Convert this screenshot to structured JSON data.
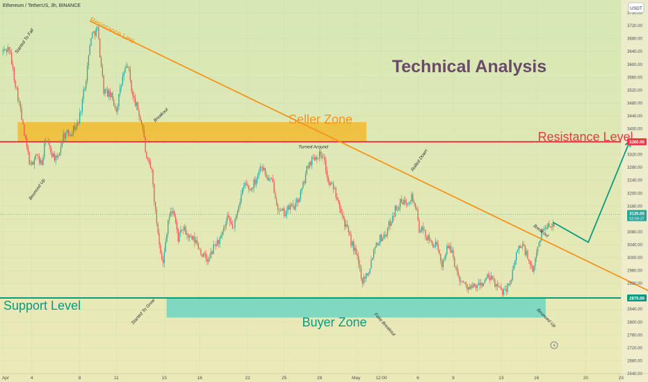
{
  "header": {
    "symbol": "Ethereum / TetherUS, 3h, BINANCE",
    "currency": "USDT"
  },
  "colors": {
    "bg_top": "#d6e8b4",
    "bg_bottom": "#ece9b8",
    "candle_up": "#26a69a",
    "candle_down": "#ef5350",
    "resistance": "#f23645",
    "support": "#089981",
    "trendline": "#f7931a",
    "seller_zone": "#f5b51e",
    "buyer_zone": "#5fd3c4",
    "title": "#6a4a68"
  },
  "chart_data": {
    "type": "candlestick",
    "title": "Technical Analysis",
    "ylim": [
      2640,
      3800
    ],
    "y_ticks": [
      "3760.00",
      "3720.00",
      "3680.00",
      "3640.00",
      "3600.00",
      "3560.00",
      "3520.00",
      "3480.00",
      "3440.00",
      "3400.00",
      "3360.00",
      "3320.00",
      "3280.00",
      "3240.00",
      "3200.00",
      "3160.00",
      "3120.00",
      "3080.00",
      "3040.00",
      "3000.00",
      "2960.00",
      "2920.00",
      "2880.00",
      "2840.00",
      "2800.00",
      "2760.00",
      "2720.00",
      "2680.00",
      "2640.00"
    ],
    "x_ticks": [
      {
        "label": "Apr",
        "idx": 0
      },
      {
        "label": "4",
        "idx": 23
      },
      {
        "label": "8",
        "idx": 61
      },
      {
        "label": "11",
        "idx": 90
      },
      {
        "label": "15",
        "idx": 128
      },
      {
        "label": "18",
        "idx": 156
      },
      {
        "label": "22",
        "idx": 194
      },
      {
        "label": "25",
        "idx": 223
      },
      {
        "label": "28",
        "idx": 251
      },
      {
        "label": "May",
        "idx": 280
      },
      {
        "label": "12:00",
        "idx": 300
      },
      {
        "label": "6",
        "idx": 329
      },
      {
        "label": "9",
        "idx": 357
      },
      {
        "label": "13",
        "idx": 395
      },
      {
        "label": "16",
        "idx": 423
      },
      {
        "label": "20",
        "idx": 462
      },
      {
        "label": "23",
        "idx": 490
      }
    ],
    "candle_count": 450,
    "price_path": [
      [
        0,
        3640
      ],
      [
        5,
        3650
      ],
      [
        9,
        3560
      ],
      [
        13,
        3480
      ],
      [
        17,
        3380
      ],
      [
        22,
        3280
      ],
      [
        26,
        3320
      ],
      [
        31,
        3290
      ],
      [
        34,
        3370
      ],
      [
        38,
        3330
      ],
      [
        43,
        3300
      ],
      [
        48,
        3380
      ],
      [
        54,
        3390
      ],
      [
        60,
        3420
      ],
      [
        66,
        3560
      ],
      [
        70,
        3690
      ],
      [
        75,
        3710
      ],
      [
        80,
        3520
      ],
      [
        86,
        3500
      ],
      [
        90,
        3460
      ],
      [
        95,
        3560
      ],
      [
        99,
        3600
      ],
      [
        103,
        3500
      ],
      [
        107,
        3460
      ],
      [
        111,
        3400
      ],
      [
        114,
        3300
      ],
      [
        118,
        3270
      ],
      [
        121,
        3140
      ],
      [
        124,
        3050
      ],
      [
        127,
        2980
      ],
      [
        131,
        3120
      ],
      [
        135,
        3150
      ],
      [
        139,
        3060
      ],
      [
        143,
        3090
      ],
      [
        148,
        3060
      ],
      [
        153,
        3050
      ],
      [
        158,
        3010
      ],
      [
        163,
        2990
      ],
      [
        168,
        3040
      ],
      [
        173,
        3060
      ],
      [
        178,
        3120
      ],
      [
        183,
        3090
      ],
      [
        187,
        3170
      ],
      [
        192,
        3230
      ],
      [
        196,
        3210
      ],
      [
        200,
        3240
      ],
      [
        205,
        3290
      ],
      [
        209,
        3250
      ],
      [
        214,
        3230
      ],
      [
        219,
        3140
      ],
      [
        224,
        3140
      ],
      [
        228,
        3160
      ],
      [
        232,
        3160
      ],
      [
        237,
        3210
      ],
      [
        242,
        3290
      ],
      [
        246,
        3310
      ],
      [
        250,
        3320
      ],
      [
        254,
        3320
      ],
      [
        258,
        3230
      ],
      [
        262,
        3220
      ],
      [
        266,
        3180
      ],
      [
        270,
        3120
      ],
      [
        275,
        3060
      ],
      [
        280,
        3010
      ],
      [
        285,
        2930
      ],
      [
        290,
        2960
      ],
      [
        295,
        3040
      ],
      [
        299,
        3060
      ],
      [
        303,
        3070
      ],
      [
        307,
        3110
      ],
      [
        311,
        3150
      ],
      [
        315,
        3170
      ],
      [
        318,
        3170
      ],
      [
        321,
        3180
      ],
      [
        324,
        3190
      ],
      [
        327,
        3160
      ],
      [
        330,
        3090
      ],
      [
        334,
        3080
      ],
      [
        338,
        3050
      ],
      [
        343,
        3040
      ],
      [
        348,
        2980
      ],
      [
        352,
        3030
      ],
      [
        356,
        3020
      ],
      [
        360,
        2950
      ],
      [
        365,
        2920
      ],
      [
        370,
        2905
      ],
      [
        375,
        2910
      ],
      [
        380,
        2920
      ],
      [
        385,
        2940
      ],
      [
        390,
        2920
      ],
      [
        395,
        2895
      ],
      [
        400,
        2910
      ],
      [
        404,
        2950
      ],
      [
        408,
        3030
      ],
      [
        412,
        3040
      ],
      [
        416,
        3000
      ],
      [
        420,
        2950
      ],
      [
        424,
        3040
      ],
      [
        428,
        3090
      ],
      [
        432,
        3100
      ],
      [
        437,
        3110
      ]
    ],
    "series": [
      {
        "name": "Resistance Level",
        "type": "hline",
        "value": 3360.0
      },
      {
        "name": "Support Level",
        "type": "hline",
        "value": 2875.0
      },
      {
        "name": "Resistance Line",
        "type": "trendline",
        "from": {
          "idx": 69,
          "price": 3735
        },
        "to": {
          "idx": 521,
          "price": 2880
        }
      }
    ],
    "zones": [
      {
        "label": "Seller Zone",
        "x_from_idx": 12,
        "x_to_idx": 288,
        "top": 3420,
        "bottom": 3360
      },
      {
        "label": "Buyer Zone",
        "x_from_idx": 130,
        "x_to_idx": 430,
        "top": 2875,
        "bottom": 2815
      }
    ],
    "projection": [
      {
        "idx": 436,
        "price": 3110
      },
      {
        "idx": 464,
        "price": 3048
      },
      {
        "idx": 497,
        "price": 3363
      }
    ],
    "price_labels": [
      {
        "text": "3360.00",
        "price": 3360,
        "color": "#f23645"
      },
      {
        "text": "2875.00",
        "price": 2875,
        "color": "#089981"
      }
    ],
    "current_price": {
      "price": "3135.00",
      "countdown": "02:59:37",
      "value": 3135
    },
    "annotations": [
      {
        "text": "Resistance Line",
        "idx": 86,
        "price": 3700
      },
      {
        "text": "Started To Fall",
        "idx": 18,
        "price": 3670
      },
      {
        "text": "Breakout",
        "idx": 126,
        "price": 3440
      },
      {
        "text": "Turned Around",
        "idx": 246,
        "price": 3340
      },
      {
        "text": "Rolled Down",
        "idx": 331,
        "price": 3300
      },
      {
        "text": "Bounced Up",
        "idx": 28,
        "price": 3210
      },
      {
        "text": "Breakout",
        "idx": 426,
        "price": 3080
      },
      {
        "text": "Started To Grow",
        "idx": 112,
        "price": 2830
      },
      {
        "text": "Fake Breakout",
        "idx": 302,
        "price": 2790
      },
      {
        "text": "Bounced Up",
        "idx": 430,
        "price": 2810
      }
    ]
  },
  "labels": {
    "title": "Technical Analysis",
    "seller_zone": "Seller Zone",
    "buyer_zone": "Buyer Zone",
    "resistance_level": "Resistance Level",
    "support_level": "Support Level"
  },
  "footer": {
    "flash_icon": "lightning-bolt-icon"
  }
}
